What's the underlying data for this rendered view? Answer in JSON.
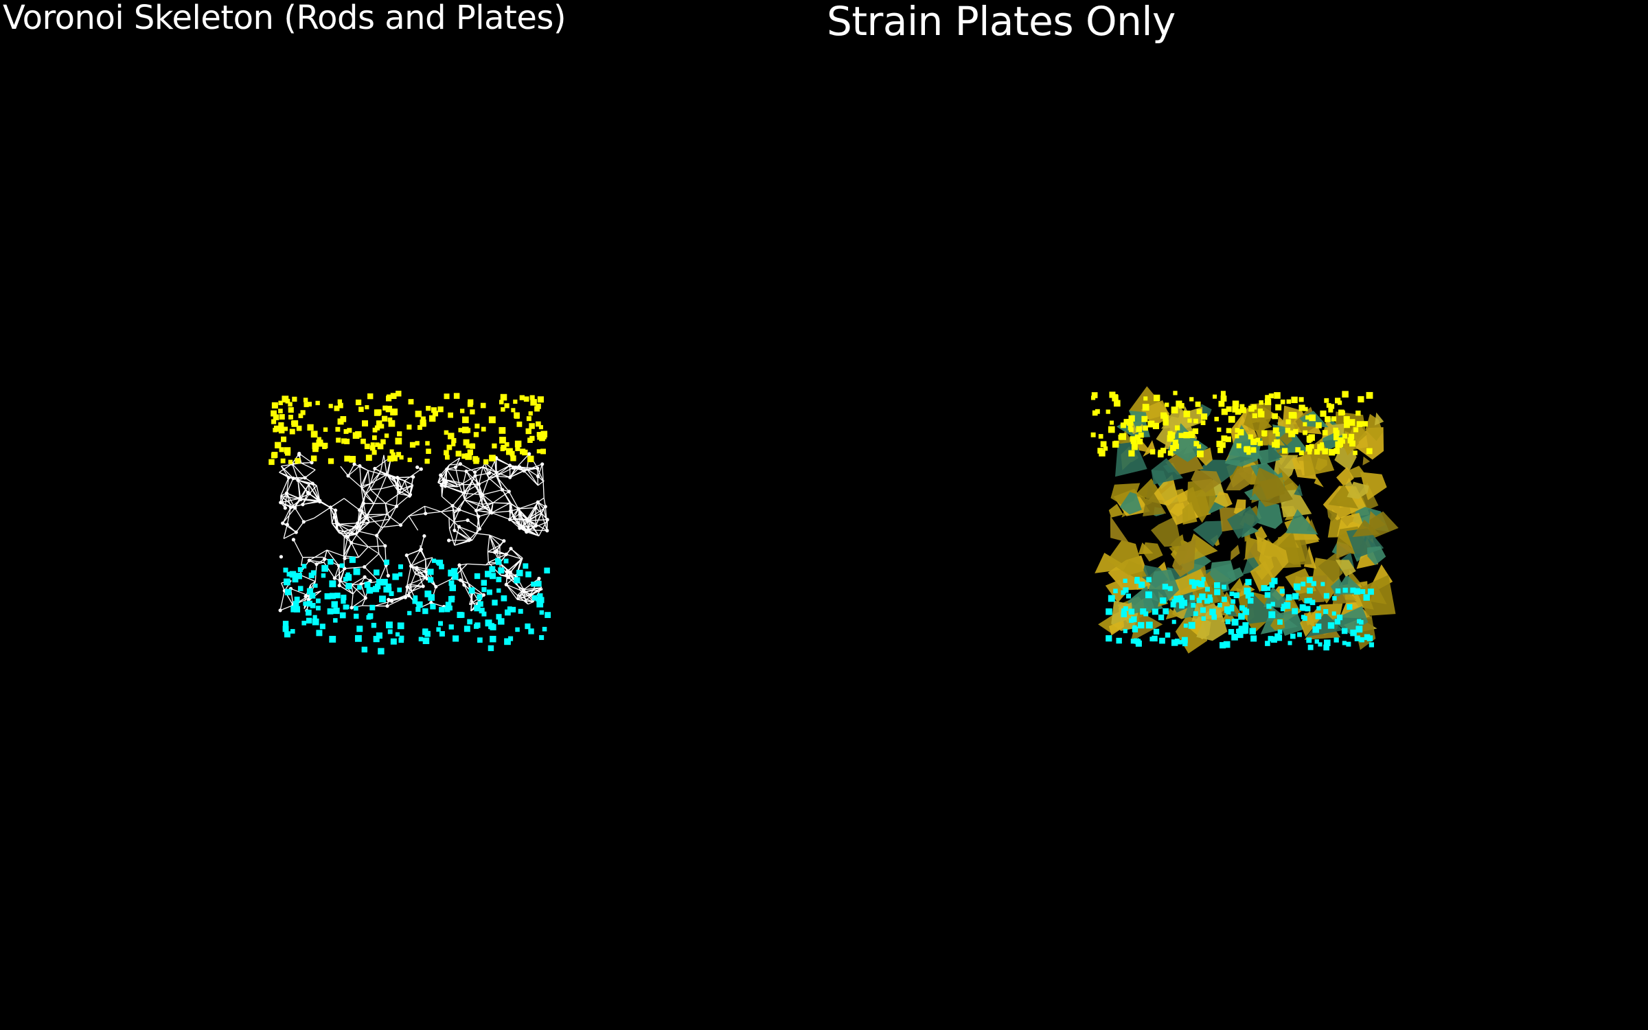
{
  "left_view": {
    "title": "Voronoi Skeleton (Rods and Plates)"
  },
  "right_view": {
    "title": "Strain Plates Only"
  },
  "colors": {
    "background": "#000000",
    "top_nodes": "#ffff00",
    "bottom_nodes": "#00ffff",
    "skeleton": "#ffffff",
    "plates": "#c8a818"
  }
}
